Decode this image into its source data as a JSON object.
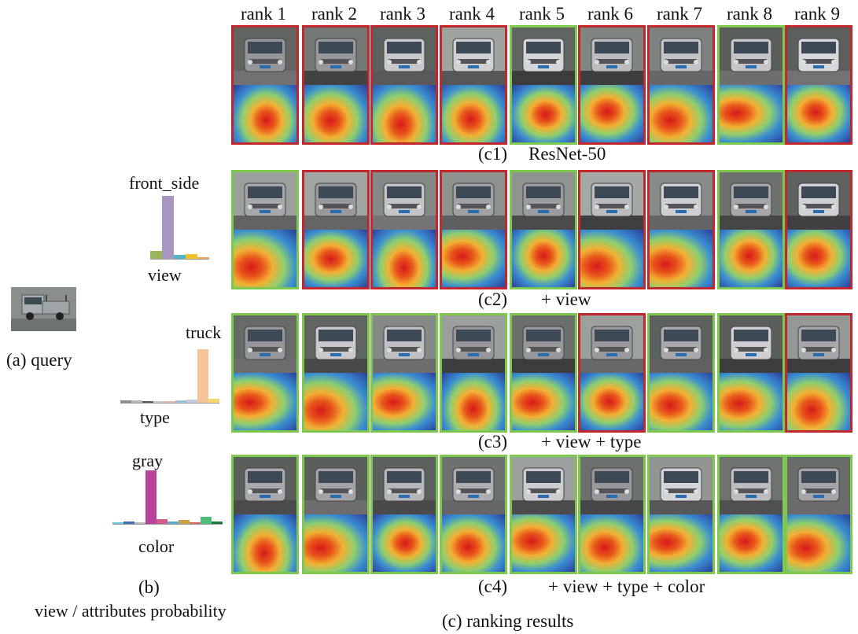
{
  "ranks": [
    "rank 1",
    "rank 2",
    "rank 3",
    "rank 4",
    "rank 5",
    "rank 6",
    "rank 7",
    "rank 8",
    "rank 9"
  ],
  "query_label": "(a) query",
  "panel_b": {
    "label": "(b)",
    "caption": "view / attributes probability",
    "view": {
      "axis_label": "view",
      "top_label": "front_side",
      "probabilities": [
        0.12,
        1.0,
        0.06,
        0.08,
        0.02
      ],
      "colors": [
        "#9cb55a",
        "#a895c2",
        "#4fb6c6",
        "#f2c12e",
        "#f4a460"
      ]
    },
    "type": {
      "axis_label": "type",
      "top_label": "truck",
      "probabilities": [
        0.04,
        0.05,
        0.02,
        0.01,
        0.03,
        0.04,
        0.06,
        1.0,
        0.08
      ],
      "colors": [
        "#8c8c8c",
        "#b6b6b6",
        "#5a5a5a",
        "#c9c9c9",
        "#e8b8b8",
        "#9ec3d8",
        "#c7c7e2",
        "#f5c49a",
        "#f5d76e"
      ]
    },
    "color": {
      "axis_label": "color",
      "top_label": "gray",
      "probabilities": [
        0.03,
        0.05,
        0.02,
        1.0,
        0.09,
        0.04,
        0.08,
        0.03,
        0.13,
        0.05
      ],
      "colors": [
        "#6ec6d6",
        "#3a6fb5",
        "#b8b8b8",
        "#b8439a",
        "#d35b8a",
        "#5aaad6",
        "#c9a447",
        "#d95f5f",
        "#4bbf7a",
        "#1e7a3a"
      ]
    }
  },
  "rows": [
    {
      "id": "c1",
      "label": "(c1)",
      "caption": "ResNet-50",
      "results": [
        "wrong",
        "wrong",
        "wrong",
        "wrong",
        "correct",
        "wrong",
        "wrong",
        "correct",
        "wrong"
      ]
    },
    {
      "id": "c2",
      "label": "(c2)",
      "caption": "+ view",
      "results": [
        "correct",
        "wrong",
        "wrong",
        "wrong",
        "correct",
        "wrong",
        "wrong",
        "correct",
        "wrong"
      ]
    },
    {
      "id": "c3",
      "label": "(c3)",
      "caption": "+ view + type",
      "results": [
        "correct",
        "correct",
        "correct",
        "correct",
        "correct",
        "wrong",
        "correct",
        "correct",
        "wrong"
      ]
    },
    {
      "id": "c4",
      "label": "(c4)",
      "caption": "+ view + type + color",
      "results": [
        "correct",
        "correct",
        "correct",
        "correct",
        "correct",
        "correct",
        "correct",
        "correct",
        "correct"
      ]
    }
  ],
  "panel_c_caption": "(c) ranking results",
  "colors": {
    "correct": "#7ec850",
    "wrong": "#c0282d"
  }
}
